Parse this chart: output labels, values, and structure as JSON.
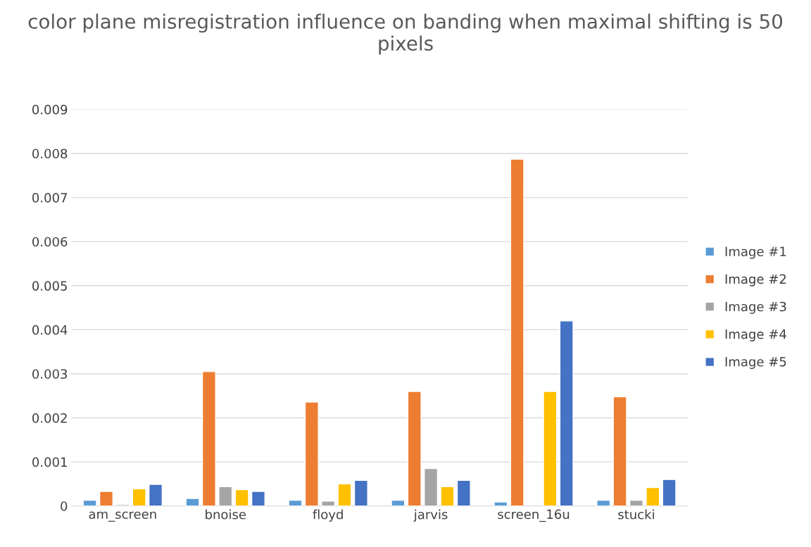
{
  "chart_data": {
    "type": "bar",
    "title": "color plane misregistration influence on banding when maximal shifting is 50 pixels",
    "categories": [
      "am_screen",
      "bnoise",
      "floyd",
      "jarvis",
      "screen_16u",
      "stucki"
    ],
    "series": [
      {
        "name": "Image #1",
        "color": "#5b9bd5",
        "values": [
          0.00013,
          0.00017,
          0.00013,
          0.00013,
          9e-05,
          0.00013
        ]
      },
      {
        "name": "Image #2",
        "color": "#ed7d31",
        "values": [
          0.00033,
          0.00305,
          0.00236,
          0.0026,
          0.00787,
          0.00248
        ]
      },
      {
        "name": "Image #3",
        "color": "#a5a5a5",
        "values": [
          3e-05,
          0.00044,
          0.00011,
          0.00085,
          null,
          0.00013
        ]
      },
      {
        "name": "Image #4",
        "color": "#ffc000",
        "values": [
          0.00039,
          0.00037,
          0.0005,
          0.00044,
          0.0026,
          0.00042
        ]
      },
      {
        "name": "Image #5",
        "color": "#4472c4",
        "values": [
          0.00049,
          0.00033,
          0.00058,
          0.00058,
          0.0042,
          0.0006
        ]
      }
    ],
    "ylim": [
      0,
      0.009
    ],
    "yticks": [
      0,
      0.001,
      0.002,
      0.003,
      0.004,
      0.005,
      0.006,
      0.007,
      0.008,
      0.009
    ],
    "grid": "y",
    "legend": "right"
  }
}
